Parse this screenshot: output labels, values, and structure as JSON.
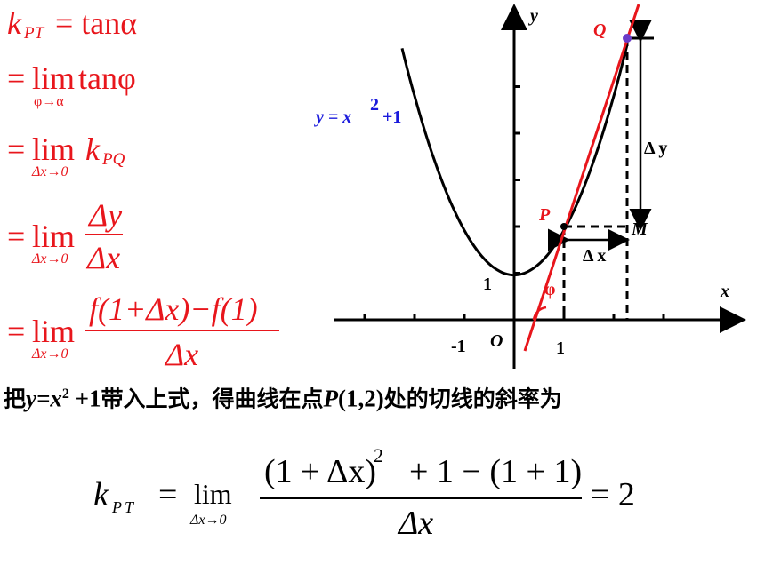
{
  "derivation": [
    {
      "k": "k",
      "sub": "PT",
      "rest": "= tanα"
    },
    {
      "eq": "=",
      "lim": "lim",
      "under": "φ→α",
      "rest": "tanφ"
    },
    {
      "eq": "=",
      "lim": "lim",
      "under": "Δx→0",
      "k": "k",
      "sub": "PQ"
    },
    {
      "eq": "=",
      "lim": "lim",
      "under": "Δx→0",
      "num": "Δy",
      "den": "Δx"
    },
    {
      "eq": "=",
      "lim": "lim",
      "under": "Δx→0",
      "num": "f(1+Δx)−f(1)",
      "den": "Δx"
    }
  ],
  "graph": {
    "y_axis": "y",
    "x_axis": "x",
    "origin": "O",
    "tick_neg_x": "-1",
    "tick_x": "1",
    "tick_y": "1",
    "point_q": "Q",
    "point_p": "P",
    "point_m": "M",
    "delta_y": "Δ y",
    "delta_x": "Δ x",
    "angle": "φ",
    "curve_label": {
      "base": "y = x",
      "exp": "2",
      "tail": "+1"
    }
  },
  "sentence": {
    "parts": [
      "把",
      "y=x",
      "2",
      " +1",
      "带入上式，得曲线在点",
      "P",
      "(1,2)",
      "处的切线的斜率为"
    ]
  },
  "result": {
    "k": "k",
    "sub": "PT",
    "eq": "=",
    "lim": "lim",
    "under": "Δx→0",
    "num_base": "(1 + Δx)",
    "num_exp": "2",
    "num_tail": "+ 1 − (1 + 1)",
    "den": "Δx",
    "rhs": "= 2"
  }
}
